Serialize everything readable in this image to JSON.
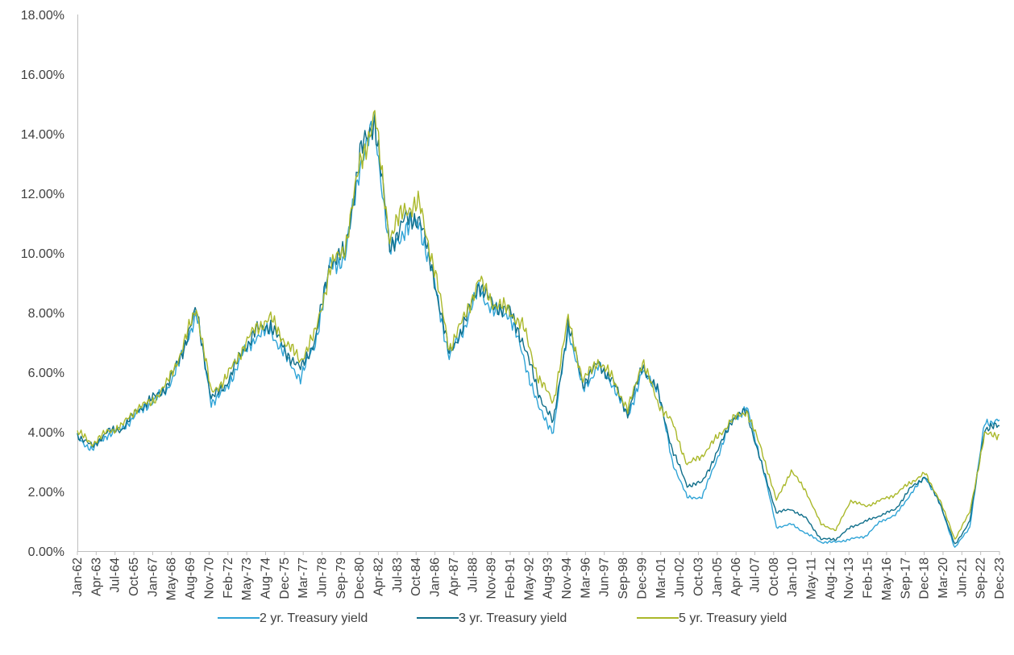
{
  "chart_data": {
    "type": "line",
    "title": "",
    "xlabel": "",
    "ylabel": "",
    "ylim": [
      0,
      18
    ],
    "y_tick_format": "percent_2dp",
    "y_ticks": [
      "0.00%",
      "2.00%",
      "4.00%",
      "6.00%",
      "8.00%",
      "10.00%",
      "12.00%",
      "14.00%",
      "16.00%",
      "18.00%"
    ],
    "x_tick_labels": [
      "Jan-62",
      "Apr-63",
      "Jul-64",
      "Oct-65",
      "Jan-67",
      "May-68",
      "Aug-69",
      "Nov-70",
      "Feb-72",
      "May-73",
      "Aug-74",
      "Dec-75",
      "Mar-77",
      "Jun-78",
      "Sep-79",
      "Dec-80",
      "Apr-82",
      "Jul-83",
      "Oct-84",
      "Jan-86",
      "Apr-87",
      "Jul-88",
      "Nov-89",
      "Feb-91",
      "May-92",
      "Aug-93",
      "Nov-94",
      "Mar-96",
      "Jun-97",
      "Sep-98",
      "Dec-99",
      "Mar-01",
      "Jun-02",
      "Oct-03",
      "Jan-05",
      "Apr-06",
      "Jul-07",
      "Oct-08",
      "Jan-10",
      "May-11",
      "Aug-12",
      "Nov-13",
      "Feb-15",
      "May-16",
      "Sep-17",
      "Dec-18",
      "Mar-20",
      "Jun-21",
      "Sep-22",
      "Dec-23"
    ],
    "x": [
      "Jan-62",
      "Jan-63",
      "Jan-64",
      "Jan-65",
      "Jan-66",
      "Jan-67",
      "Jan-68",
      "Jan-69",
      "Jan-70",
      "Jan-71",
      "Jan-72",
      "Jan-73",
      "Jan-74",
      "Jan-75",
      "Jan-76",
      "Jan-77",
      "Jan-78",
      "Jan-79",
      "Jan-80",
      "Jan-81",
      "Jan-82",
      "Jan-83",
      "Jan-84",
      "Jan-85",
      "Jan-86",
      "Jan-87",
      "Jan-88",
      "Jan-89",
      "Jan-90",
      "Jan-91",
      "Jan-92",
      "Jan-93",
      "Jan-94",
      "Jan-95",
      "Jan-96",
      "Jan-97",
      "Jan-98",
      "Jan-99",
      "Jan-00",
      "Jan-01",
      "Jan-02",
      "Jan-03",
      "Jan-04",
      "Jan-05",
      "Jan-06",
      "Jan-07",
      "Jan-08",
      "Jan-09",
      "Jan-10",
      "Jan-11",
      "Jan-12",
      "Jan-13",
      "Jan-14",
      "Jan-15",
      "Jan-16",
      "Jan-17",
      "Jan-18",
      "Jan-19",
      "Jan-20",
      "Jan-21",
      "Jan-22",
      "Jan-23",
      "Dec-23"
    ],
    "series": [
      {
        "name": "2 yr. Treasury yield",
        "color": "#2EA3D6",
        "values": [
          3.8,
          3.4,
          3.9,
          4.1,
          4.6,
          5.0,
          5.4,
          6.5,
          8.0,
          5.0,
          5.4,
          6.5,
          7.2,
          7.4,
          6.5,
          5.8,
          7.0,
          9.6,
          9.8,
          13.0,
          14.3,
          10.0,
          10.8,
          11.0,
          9.0,
          6.5,
          7.5,
          8.8,
          8.0,
          8.0,
          6.5,
          4.8,
          4.0,
          7.5,
          5.4,
          6.2,
          5.6,
          4.5,
          6.0,
          5.5,
          3.0,
          1.8,
          1.8,
          3.1,
          4.4,
          4.8,
          3.0,
          0.8,
          0.9,
          0.6,
          0.3,
          0.3,
          0.4,
          0.5,
          1.0,
          1.2,
          1.9,
          2.5,
          1.6,
          0.1,
          0.8,
          4.3,
          4.4
        ]
      },
      {
        "name": "3 yr. Treasury yield",
        "color": "#0F6E8A",
        "values": [
          3.9,
          3.5,
          4.0,
          4.1,
          4.7,
          5.1,
          5.5,
          6.6,
          8.1,
          5.1,
          5.6,
          6.6,
          7.4,
          7.6,
          6.7,
          6.1,
          7.1,
          9.7,
          10.0,
          13.3,
          14.5,
          10.2,
          11.1,
          11.2,
          9.1,
          6.6,
          7.6,
          9.0,
          8.2,
          8.1,
          7.0,
          5.3,
          4.3,
          7.6,
          5.6,
          6.3,
          5.7,
          4.6,
          6.2,
          5.4,
          3.4,
          2.2,
          2.3,
          3.3,
          4.4,
          4.7,
          2.9,
          1.3,
          1.4,
          1.1,
          0.4,
          0.4,
          0.8,
          1.0,
          1.2,
          1.4,
          2.1,
          2.5,
          1.6,
          0.2,
          1.0,
          4.1,
          4.2
        ]
      },
      {
        "name": "5 yr. Treasury yield",
        "color": "#AAB82A",
        "values": [
          4.0,
          3.6,
          4.0,
          4.2,
          4.8,
          5.0,
          5.6,
          6.7,
          8.2,
          5.3,
          5.8,
          6.7,
          7.5,
          7.8,
          7.0,
          6.4,
          7.3,
          9.5,
          10.2,
          13.0,
          14.6,
          10.5,
          11.5,
          11.6,
          9.5,
          6.8,
          7.8,
          9.1,
          8.3,
          8.1,
          7.5,
          5.8,
          5.0,
          7.8,
          5.7,
          6.4,
          5.8,
          4.7,
          6.4,
          5.0,
          4.3,
          2.9,
          3.2,
          3.8,
          4.4,
          4.7,
          3.4,
          1.7,
          2.7,
          2.0,
          0.9,
          0.7,
          1.7,
          1.5,
          1.7,
          1.9,
          2.3,
          2.6,
          1.7,
          0.4,
          1.3,
          3.9,
          3.9
        ]
      }
    ],
    "legend": {
      "position": "bottom-center",
      "entries": [
        "2 yr. Treasury yield",
        "3 yr. Treasury yield",
        "5 yr. Treasury yield"
      ]
    },
    "grid": false,
    "axis_color": "#BFBFBF",
    "text_color": "#404040"
  }
}
